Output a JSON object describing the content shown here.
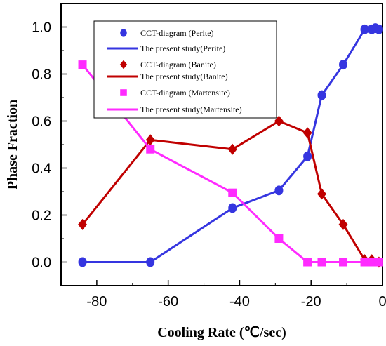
{
  "chart_data": {
    "type": "line",
    "xlabel": "Cooling Rate (℃/sec)",
    "ylabel": "Phase Fraction",
    "xlim": [
      -90,
      0
    ],
    "ylim": [
      -0.1,
      1.1
    ],
    "x_ticks": [
      -80,
      -60,
      -40,
      -20,
      0
    ],
    "x_tick_labels": [
      "-80",
      "-60",
      "-40",
      "-20",
      "0"
    ],
    "y_ticks": [
      0.0,
      0.2,
      0.4,
      0.6,
      0.8,
      1.0
    ],
    "y_tick_labels": [
      "0.0",
      "0.2",
      "0.4",
      "0.6",
      "0.8",
      "1.0"
    ],
    "grid": false,
    "legend_position": "top-center",
    "series": [
      {
        "name": "CCT-diagram (Perite)",
        "line_name": "The present study(Perite)",
        "color": "#3535e0",
        "marker": "circle",
        "x": [
          -84,
          -65,
          -42,
          -29,
          -21,
          -17,
          -11,
          -5,
          -3,
          -2,
          -1
        ],
        "y": [
          0.0,
          0.0,
          0.23,
          0.305,
          0.45,
          0.71,
          0.84,
          0.99,
          0.99,
          0.995,
          0.99
        ]
      },
      {
        "name": "CCT-diagram (Banite)",
        "line_name": "The present study(Banite)",
        "color": "#c00000",
        "marker": "diamond",
        "x": [
          -84,
          -65,
          -42,
          -29,
          -21,
          -17,
          -11,
          -5,
          -3,
          -1
        ],
        "y": [
          0.16,
          0.52,
          0.48,
          0.6,
          0.55,
          0.29,
          0.16,
          0.01,
          0.01,
          0.0
        ]
      },
      {
        "name": "CCT-diagram (Martensite)",
        "line_name": "The present study(Martensite)",
        "color": "#ff2bff",
        "marker": "square",
        "x": [
          -84,
          -65,
          -42,
          -29,
          -21,
          -17,
          -11,
          -5,
          -3,
          -1
        ],
        "y": [
          0.84,
          0.48,
          0.295,
          0.1,
          0.0,
          0.0,
          0.0,
          0.0,
          0.0,
          0.0
        ]
      }
    ]
  }
}
